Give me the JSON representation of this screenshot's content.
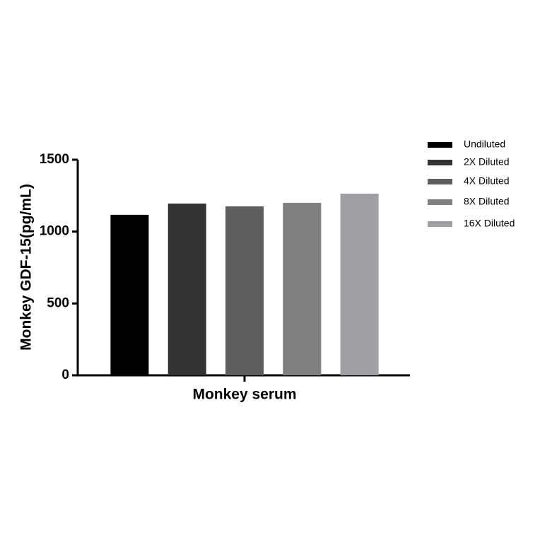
{
  "chart_data": {
    "type": "bar",
    "y_label": "Monkey GDF-15(pg/mL)",
    "categories": [
      "Monkey serum"
    ],
    "series": [
      {
        "name": "Undiluted",
        "color": "#000000",
        "values": [
          1117
        ]
      },
      {
        "name": "2X Diluted",
        "color": "#333333",
        "values": [
          1195
        ]
      },
      {
        "name": "4X Diluted",
        "color": "#5f5f5f",
        "values": [
          1176
        ]
      },
      {
        "name": "8X Diluted",
        "color": "#808080",
        "values": [
          1200
        ]
      },
      {
        "name": "16X Diluted",
        "color": "#a0a0a4",
        "values": [
          1264
        ]
      }
    ],
    "ylim": [
      0,
      1500
    ],
    "yticks": [
      0,
      500,
      1000,
      1500
    ],
    "grid": false,
    "legend": "right"
  }
}
